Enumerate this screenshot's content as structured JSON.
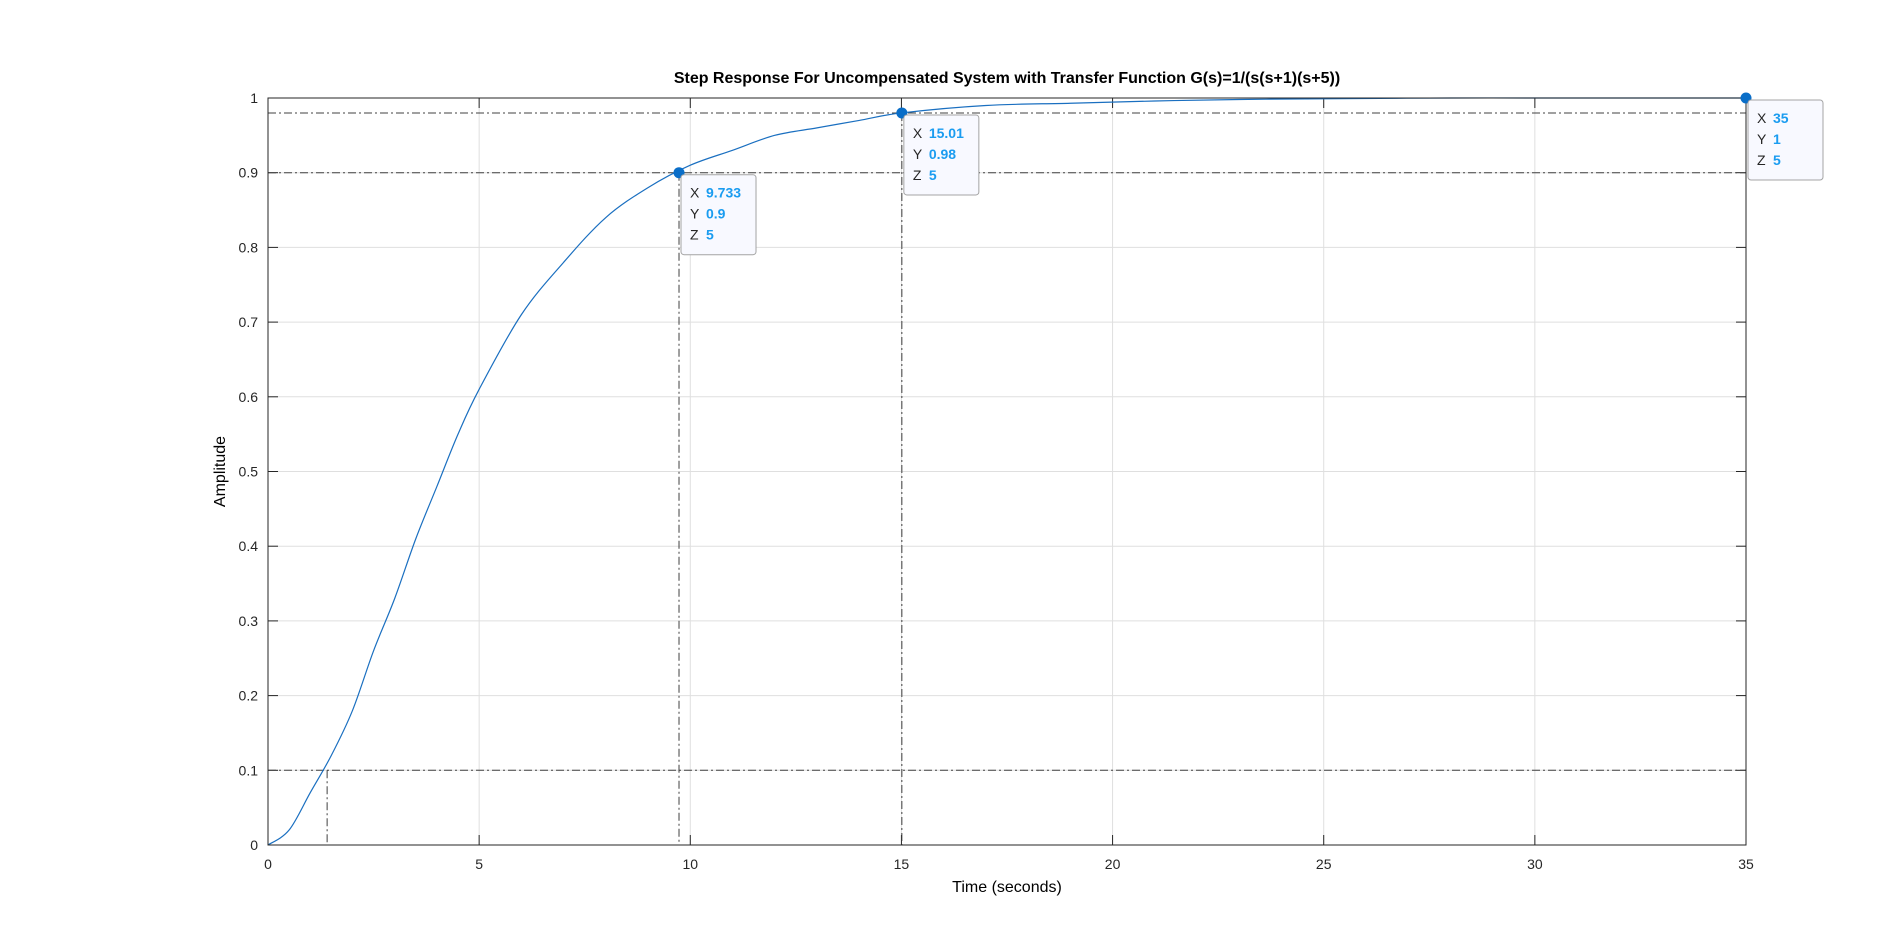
{
  "chart_data": {
    "type": "line",
    "title": "Step Response For Uncompensated System with Transfer Function G(s)=1/(s(s+1)(s+5))",
    "xlabel": "Time (seconds)",
    "ylabel": "Amplitude",
    "xlim": [
      0,
      35
    ],
    "ylim": [
      0,
      1
    ],
    "xticks": [
      0,
      5,
      10,
      15,
      20,
      25,
      30,
      35
    ],
    "xtick_labels": [
      "0",
      "5",
      "10",
      "15",
      "20",
      "25",
      "30",
      "35"
    ],
    "yticks": [
      0,
      0.1,
      0.2,
      0.3,
      0.4,
      0.5,
      0.6,
      0.7,
      0.8,
      0.9,
      1
    ],
    "ytick_labels": [
      "0",
      "0.1",
      "0.2",
      "0.3",
      "0.4",
      "0.5",
      "0.6",
      "0.7",
      "0.8",
      "0.9",
      "1"
    ],
    "grid": true,
    "line_color": "#1a6fc0",
    "series": [
      {
        "x": [
          0,
          0.5,
          1,
          1.5,
          2,
          2.5,
          3,
          3.5,
          4,
          4.5,
          5,
          6,
          7,
          8,
          9,
          10,
          11,
          12,
          13,
          14,
          15,
          17,
          19,
          21,
          23,
          25,
          28,
          31,
          35
        ],
        "values": [
          0,
          0.02,
          0.07,
          0.12,
          0.18,
          0.26,
          0.33,
          0.41,
          0.48,
          0.55,
          0.61,
          0.71,
          0.78,
          0.84,
          0.88,
          0.91,
          0.93,
          0.95,
          0.96,
          0.97,
          0.98,
          0.99,
          0.993,
          0.996,
          0.998,
          0.999,
          1,
          1,
          1
        ]
      }
    ],
    "reference_lines": [
      {
        "x": 1.4,
        "y": 0.1
      },
      {
        "x": 9.733,
        "y": 0.9
      },
      {
        "x": 15.01,
        "y": 0.98
      }
    ],
    "datatips": [
      {
        "x": 9.733,
        "y": 0.9,
        "z": 5,
        "x_text": "9.733",
        "y_text": "0.9",
        "z_text": "5"
      },
      {
        "x": 15.01,
        "y": 0.98,
        "z": 5,
        "x_text": "15.01",
        "y_text": "0.98",
        "z_text": "5"
      },
      {
        "x": 35,
        "y": 1,
        "z": 5,
        "x_text": "35",
        "y_text": "1",
        "z_text": "5"
      }
    ],
    "datatip_keys": {
      "x": "X",
      "y": "Y",
      "z": "Z"
    },
    "datatip_value_color": "#1a9cf0",
    "marker_color": "#0a6ec8"
  }
}
